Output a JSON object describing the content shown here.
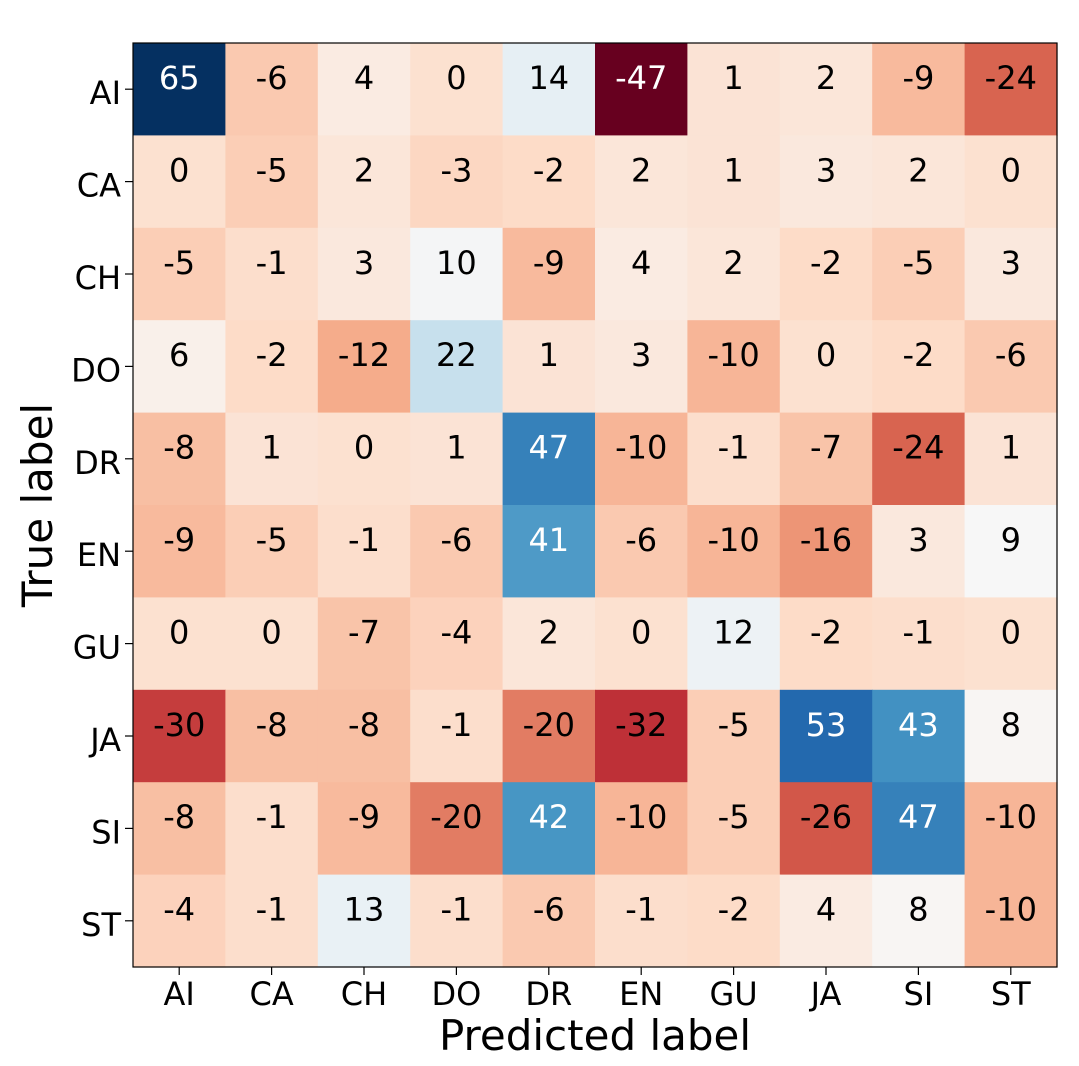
{
  "chart_data": {
    "type": "heatmap",
    "title": "",
    "xlabel": "Predicted label",
    "ylabel": "True label",
    "x_categories": [
      "AI",
      "CA",
      "CH",
      "DO",
      "DR",
      "EN",
      "GU",
      "JA",
      "SI",
      "ST"
    ],
    "y_categories": [
      "AI",
      "CA",
      "CH",
      "DO",
      "DR",
      "EN",
      "GU",
      "JA",
      "SI",
      "ST"
    ],
    "values": [
      [
        65,
        -6,
        4,
        0,
        14,
        -47,
        1,
        2,
        -9,
        -24
      ],
      [
        0,
        -5,
        2,
        -3,
        -2,
        2,
        1,
        3,
        2,
        0
      ],
      [
        -5,
        -1,
        3,
        10,
        -9,
        4,
        2,
        -2,
        -5,
        3
      ],
      [
        6,
        -2,
        -12,
        22,
        1,
        3,
        -10,
        0,
        -2,
        -6
      ],
      [
        -8,
        1,
        0,
        1,
        47,
        -10,
        -1,
        -7,
        -24,
        1
      ],
      [
        -9,
        -5,
        -1,
        -6,
        41,
        -6,
        -10,
        -16,
        3,
        9
      ],
      [
        0,
        0,
        -7,
        -4,
        2,
        0,
        12,
        -2,
        -1,
        0
      ],
      [
        -30,
        -8,
        -8,
        -1,
        -20,
        -32,
        -5,
        53,
        43,
        8
      ],
      [
        -8,
        -1,
        -9,
        -20,
        42,
        -10,
        -5,
        -26,
        47,
        -10
      ],
      [
        -4,
        -1,
        13,
        -1,
        -6,
        -1,
        -2,
        4,
        8,
        -10
      ]
    ],
    "colormap": "RdBu",
    "value_range": [
      -47,
      65
    ],
    "grid": false,
    "legend": "none"
  }
}
